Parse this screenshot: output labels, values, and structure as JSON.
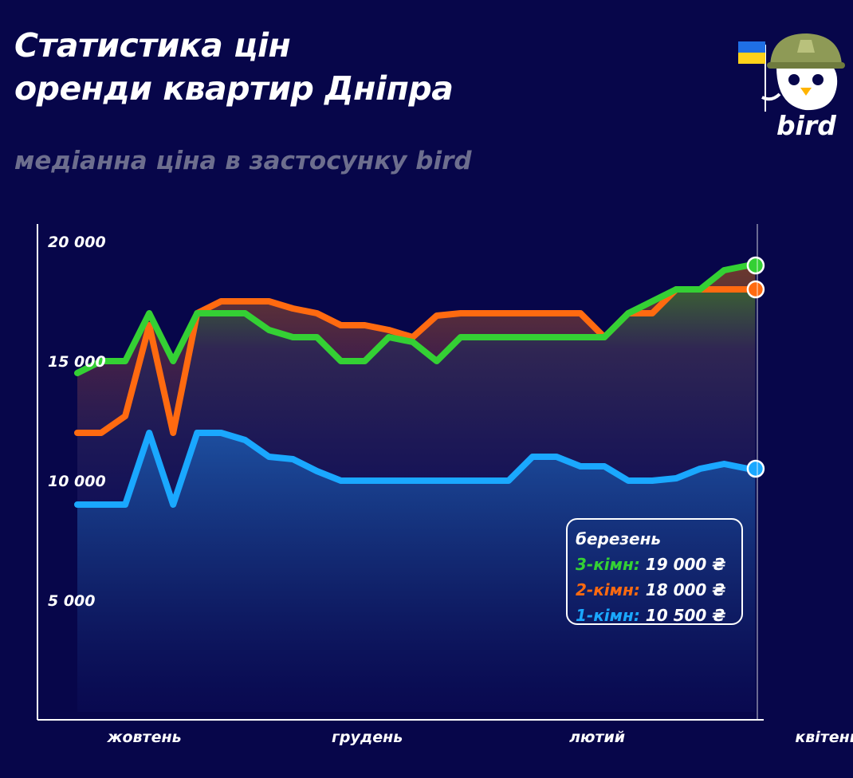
{
  "header": {
    "title_line1": "Статистика цін",
    "title_line2": "оренди квартир Дніпра",
    "subtitle": "медіанна ціна в застосунку bird"
  },
  "brand": {
    "logo_text": "bird"
  },
  "colors": {
    "background": "#07064a",
    "three_room": "#34d034",
    "two_room": "#ff6a10",
    "one_room": "#1aa8ff",
    "axis": "#ffffff"
  },
  "legend": {
    "month": "березень",
    "rows": [
      {
        "label": "3-кімн:",
        "value": "19 000 ₴",
        "color": "#34d034"
      },
      {
        "label": "2-кімн:",
        "value": "18 000 ₴",
        "color": "#ff6a10"
      },
      {
        "label": "1-кімн:",
        "value": "10 500 ₴",
        "color": "#1aa8ff"
      }
    ]
  },
  "chart_data": {
    "type": "area",
    "title": "Статистика цін оренди квартир Дніпра",
    "subtitle": "медіанна ціна в застосунку bird",
    "xlabel": "",
    "ylabel": "",
    "ylim": [
      0,
      20000
    ],
    "yticks": [
      {
        "value": 20000,
        "label": "20 000"
      },
      {
        "value": 15000,
        "label": "15 000"
      },
      {
        "value": 10000,
        "label": "10 000"
      },
      {
        "value": 5000,
        "label": "5 000"
      }
    ],
    "xlim": [
      0,
      28.3
    ],
    "xticks": [
      {
        "value": 2.8,
        "label": "жовтень"
      },
      {
        "value": 12.1,
        "label": "грудень"
      },
      {
        "value": 21.7,
        "label": "лютий"
      },
      {
        "value": 31.3,
        "label": "квітень"
      }
    ],
    "grid": false,
    "x": [
      0,
      1,
      2,
      3,
      4,
      5,
      6,
      7,
      8,
      9,
      10,
      11,
      12,
      13,
      14,
      15,
      16,
      17,
      18,
      19,
      20,
      21,
      22,
      23,
      24,
      25,
      26,
      27,
      28,
      28.3
    ],
    "series": [
      {
        "name": "3-кімн",
        "values": [
          14500,
          15000,
          15000,
          17000,
          15000,
          17000,
          17000,
          17000,
          16300,
          16000,
          16000,
          15000,
          15000,
          16000,
          15800,
          15000,
          16000,
          16000,
          16000,
          16000,
          16000,
          16000,
          16000,
          17000,
          17500,
          18000,
          18000,
          18800,
          19000,
          19000
        ]
      },
      {
        "name": "2-кімн",
        "values": [
          12000,
          12000,
          12700,
          16500,
          12000,
          17000,
          17500,
          17500,
          17500,
          17200,
          17000,
          16500,
          16500,
          16300,
          16000,
          16900,
          17000,
          17000,
          17000,
          17000,
          17000,
          17000,
          16000,
          17000,
          17000,
          18000,
          18000,
          18000,
          18000,
          18000
        ]
      },
      {
        "name": "1-кімн",
        "values": [
          9000,
          9000,
          9000,
          12000,
          9000,
          12000,
          12000,
          11700,
          11000,
          10900,
          10400,
          10000,
          10000,
          10000,
          10000,
          10000,
          10000,
          10000,
          10000,
          11000,
          11000,
          10600,
          10600,
          10000,
          10000,
          10100,
          10500,
          10700,
          10500,
          10500
        ]
      }
    ]
  }
}
